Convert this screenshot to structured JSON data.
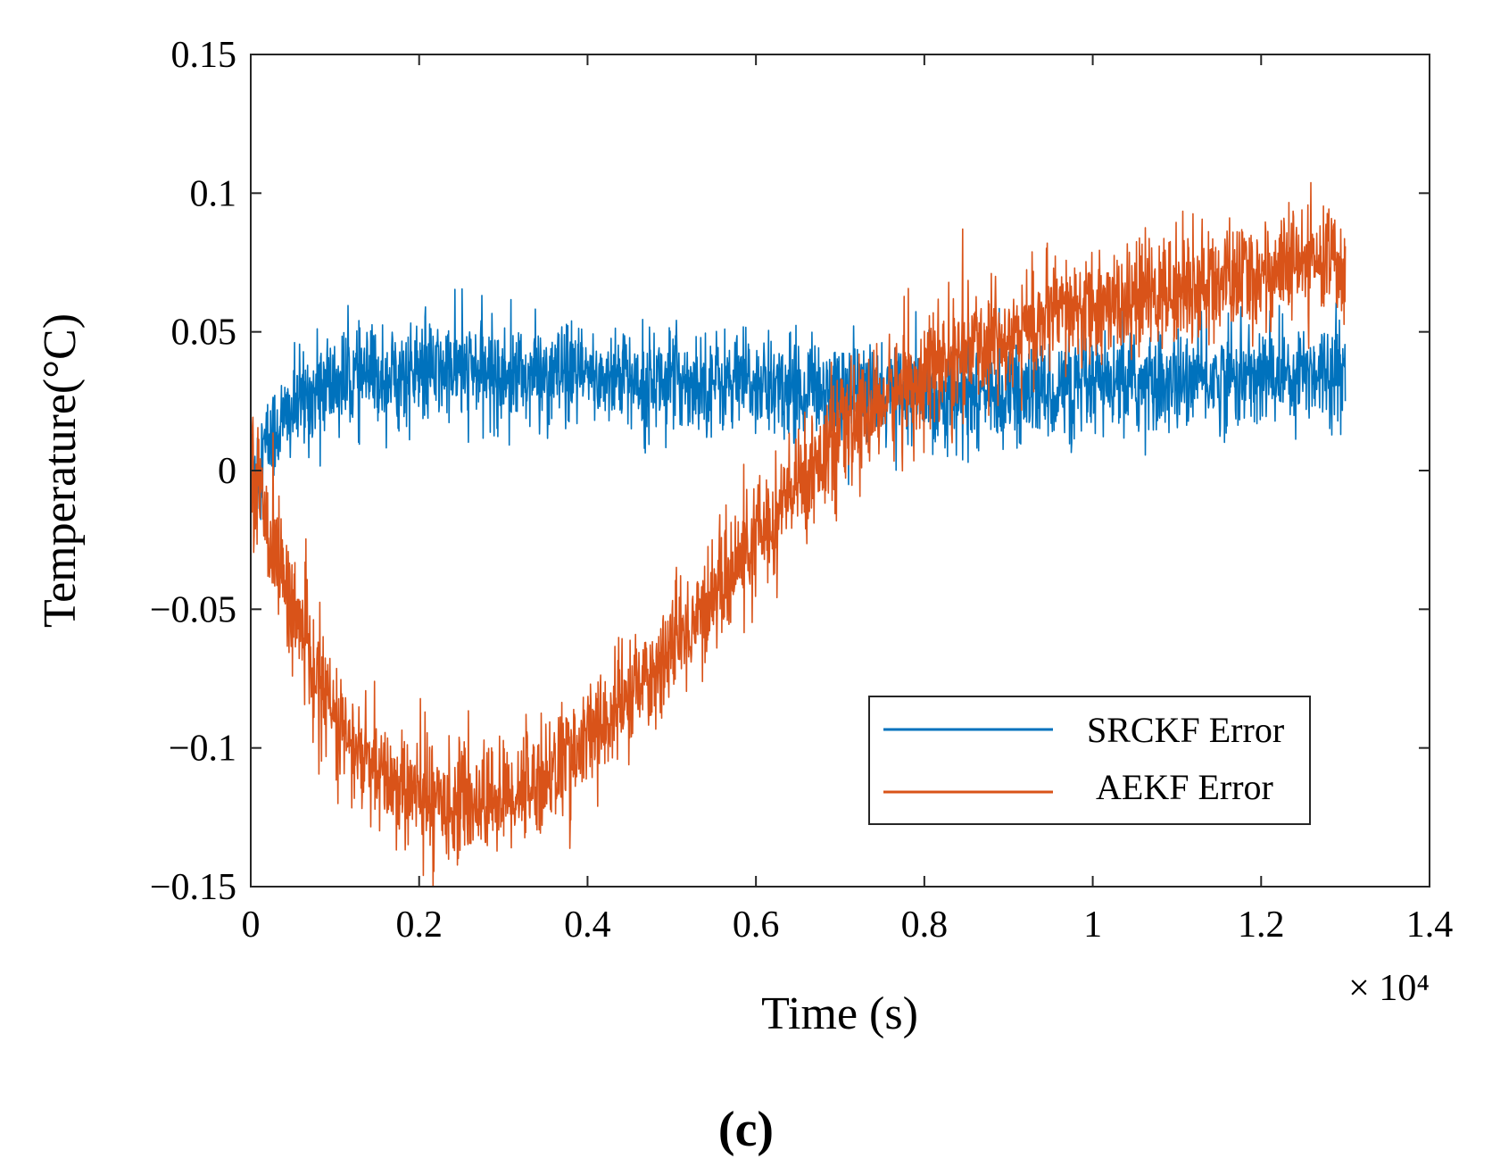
{
  "chart_data": {
    "type": "line",
    "xlabel": "Time (s)",
    "ylabel": "Temperature(°C)",
    "x_exponent_label": "× 10⁴",
    "panel_label": "(c)",
    "xlim": [
      0,
      14000
    ],
    "ylim": [
      -0.15,
      0.15
    ],
    "x_ticks": [
      0,
      2000,
      4000,
      6000,
      8000,
      10000,
      12000,
      14000
    ],
    "x_tick_labels": [
      "0",
      "0.2",
      "0.4",
      "0.6",
      "0.8",
      "1",
      "1.2",
      "1.4"
    ],
    "y_ticks": [
      -0.15,
      -0.1,
      -0.05,
      0,
      0.05,
      0.1,
      0.15
    ],
    "y_tick_labels": [
      "−0.15",
      "−0.1",
      "−0.05",
      "0",
      "0.05",
      "0.1",
      "0.15"
    ],
    "grid": false,
    "legend_position": "bottom-right",
    "series": [
      {
        "name": "SRCKF Error",
        "color": "#0072BD",
        "x": [
          0,
          300,
          600,
          900,
          1200,
          1500,
          2000,
          2500,
          3000,
          3500,
          4000,
          4500,
          5000,
          5500,
          6000,
          6500,
          7000,
          7500,
          8000,
          8500,
          9000,
          9500,
          10000,
          10500,
          11000,
          11500,
          12000,
          12500,
          13000
        ],
        "values": [
          0.0,
          0.015,
          0.025,
          0.03,
          0.033,
          0.034,
          0.035,
          0.036,
          0.035,
          0.034,
          0.034,
          0.033,
          0.033,
          0.032,
          0.031,
          0.03,
          0.029,
          0.028,
          0.027,
          0.027,
          0.028,
          0.029,
          0.03,
          0.031,
          0.032,
          0.033,
          0.034,
          0.036,
          0.037
        ],
        "noise": 0.009
      },
      {
        "name": "AEKF Error",
        "color": "#D95319",
        "x": [
          0,
          200,
          500,
          800,
          1000,
          1200,
          1500,
          2000,
          2500,
          3000,
          3500,
          4000,
          4500,
          5000,
          5500,
          6000,
          6500,
          7000,
          7500,
          8000,
          8500,
          9000,
          9500,
          10000,
          10500,
          11000,
          11500,
          12000,
          12500,
          13000
        ],
        "values": [
          0.005,
          -0.02,
          -0.05,
          -0.075,
          -0.09,
          -0.1,
          -0.11,
          -0.118,
          -0.12,
          -0.118,
          -0.11,
          -0.097,
          -0.082,
          -0.065,
          -0.045,
          -0.025,
          -0.005,
          0.013,
          0.025,
          0.035,
          0.043,
          0.05,
          0.055,
          0.059,
          0.062,
          0.065,
          0.068,
          0.071,
          0.074,
          0.076
        ],
        "noise": 0.01
      }
    ]
  }
}
